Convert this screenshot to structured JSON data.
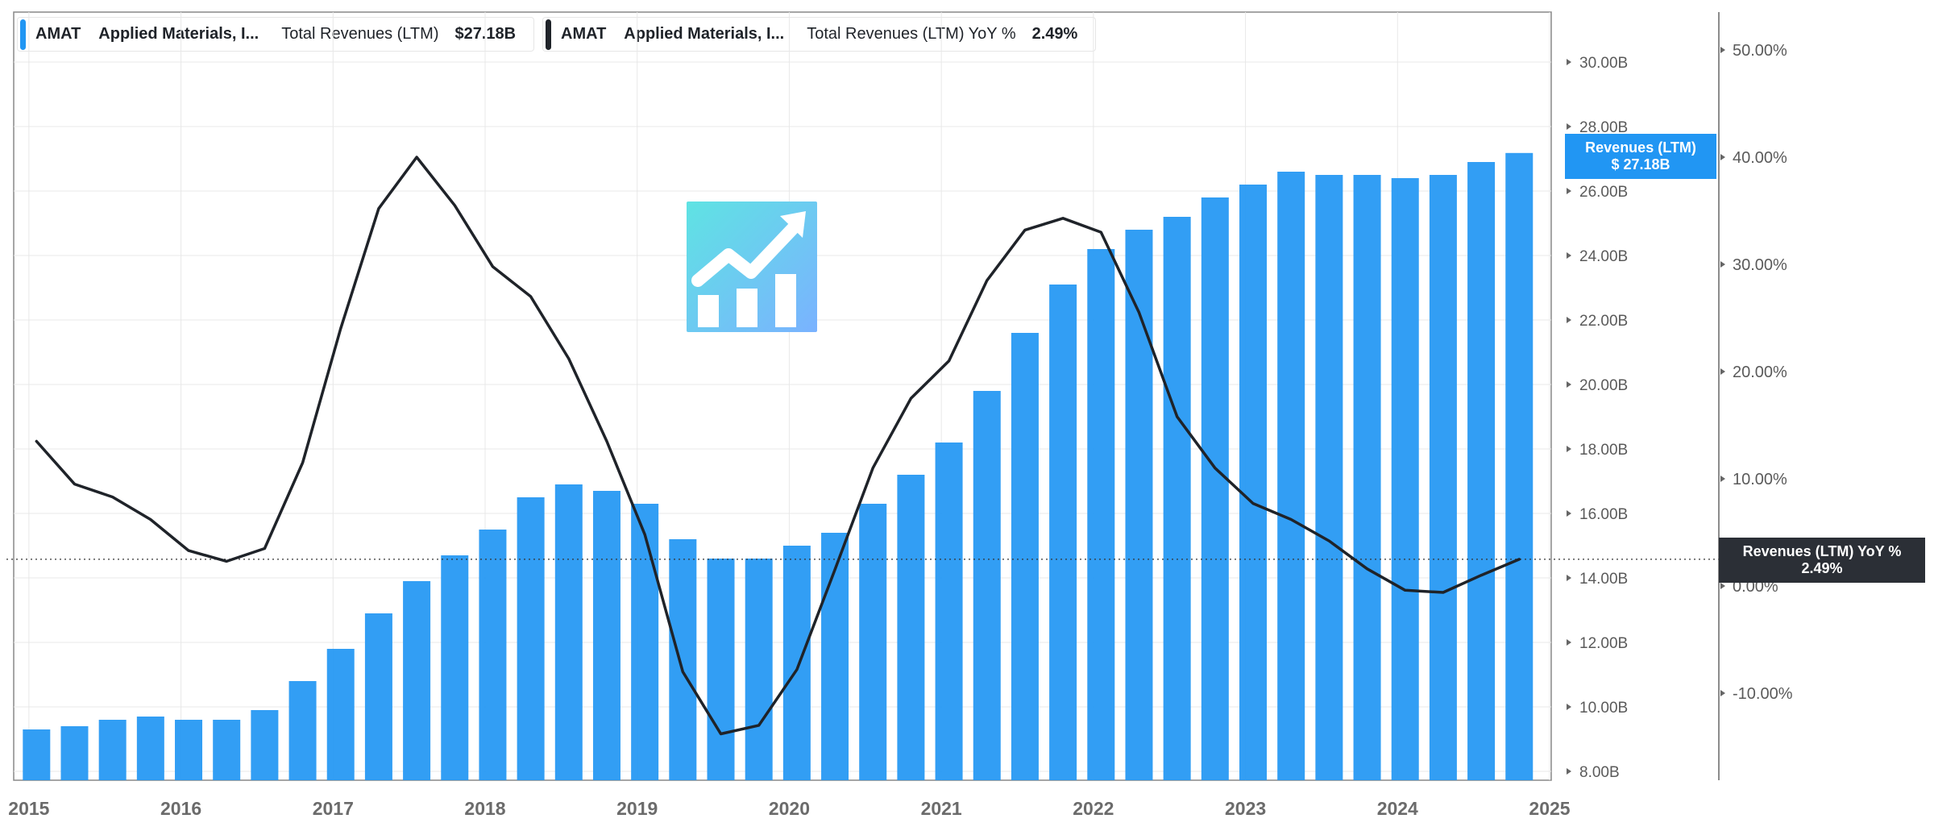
{
  "legend": [
    {
      "ticker": "AMAT",
      "company": "Applied Materials, I...",
      "metric": "Total Revenues (LTM)",
      "value": "$27.18B",
      "color": "#2196f3"
    },
    {
      "ticker": "AMAT",
      "company": "Applied Materials, I...",
      "metric": "Total Revenues (LTM) YoY %",
      "value": "2.49%",
      "color": "#1f2329"
    }
  ],
  "tags": {
    "revenue": {
      "line1": "Revenues (LTM)",
      "line2": "$ 27.18B",
      "color": "#2196f3"
    },
    "yoy": {
      "line1": "Revenues (LTM) YoY %",
      "line2": "2.49%",
      "color": "#2b2f36"
    }
  },
  "logo_icon": "chart-growth-logo-icon",
  "chart_data": {
    "type": "bar",
    "x_ticks": [
      "2015",
      "2016",
      "2017",
      "2018",
      "2019",
      "2020",
      "2021",
      "2022",
      "2023",
      "2024",
      "2025"
    ],
    "y_left": {
      "min": 8,
      "max": 31,
      "ticks": [
        "8.00B",
        "10.00B",
        "12.00B",
        "14.00B",
        "16.00B",
        "18.00B",
        "20.00B",
        "22.00B",
        "24.00B",
        "26.00B",
        "28.00B",
        "30.00B"
      ]
    },
    "y_right": {
      "min": -18,
      "max": 54,
      "ticks": [
        "-10.00%",
        "0.00%",
        "10.00%",
        "20.00%",
        "30.00%",
        "40.00%",
        "50.00%"
      ]
    },
    "series": [
      {
        "name": "Total Revenues (LTM)",
        "type": "bar",
        "axis": "left",
        "color": "#2196f3",
        "x": [
          2015.05,
          2015.3,
          2015.55,
          2015.8,
          2016.05,
          2016.3,
          2016.55,
          2016.8,
          2017.05,
          2017.3,
          2017.55,
          2017.8,
          2018.05,
          2018.3,
          2018.55,
          2018.8,
          2019.05,
          2019.3,
          2019.55,
          2019.8,
          2020.05,
          2020.3,
          2020.55,
          2020.8,
          2021.05,
          2021.3,
          2021.55,
          2021.8,
          2022.05,
          2022.3,
          2022.55,
          2022.8,
          2023.05,
          2023.3,
          2023.55,
          2023.8,
          2024.05,
          2024.3,
          2024.55,
          2024.8
        ],
        "values": [
          9.3,
          9.4,
          9.6,
          9.7,
          9.6,
          9.6,
          9.9,
          10.8,
          11.8,
          12.9,
          13.9,
          14.7,
          15.5,
          16.5,
          16.9,
          16.7,
          16.3,
          15.2,
          14.6,
          14.6,
          15.0,
          15.4,
          16.3,
          17.2,
          18.2,
          19.8,
          21.6,
          23.1,
          24.2,
          24.8,
          25.2,
          25.8,
          26.2,
          26.6,
          26.5,
          26.5,
          26.4,
          26.5,
          26.9,
          27.18
        ]
      },
      {
        "name": "Total Revenues (LTM) YoY %",
        "type": "line",
        "axis": "right",
        "color": "#1f2329",
        "x": [
          2015.05,
          2015.3,
          2015.55,
          2015.8,
          2016.05,
          2016.3,
          2016.55,
          2016.8,
          2017.05,
          2017.3,
          2017.55,
          2017.8,
          2018.05,
          2018.3,
          2018.55,
          2018.8,
          2019.05,
          2019.3,
          2019.55,
          2019.8,
          2020.05,
          2020.3,
          2020.55,
          2020.8,
          2021.05,
          2021.3,
          2021.55,
          2021.8,
          2022.05,
          2022.3,
          2022.55,
          2022.8,
          2023.05,
          2023.3,
          2023.55,
          2023.8,
          2024.05,
          2024.3,
          2024.55,
          2024.8
        ],
        "values": [
          13.5,
          9.5,
          8.3,
          6.2,
          3.3,
          2.3,
          3.5,
          11.5,
          24.0,
          35.2,
          40.0,
          35.5,
          29.8,
          27.0,
          21.2,
          13.5,
          4.8,
          -8.0,
          -13.8,
          -13.0,
          -7.8,
          1.5,
          11.0,
          17.5,
          21.0,
          28.5,
          33.2,
          34.3,
          33.0,
          25.5,
          15.8,
          11.0,
          7.7,
          6.2,
          4.2,
          1.6,
          -0.4,
          -0.6,
          1.0,
          2.49
        ]
      }
    ],
    "reference_line": {
      "axis": "right",
      "value": 2.49,
      "style": "dotted"
    }
  }
}
